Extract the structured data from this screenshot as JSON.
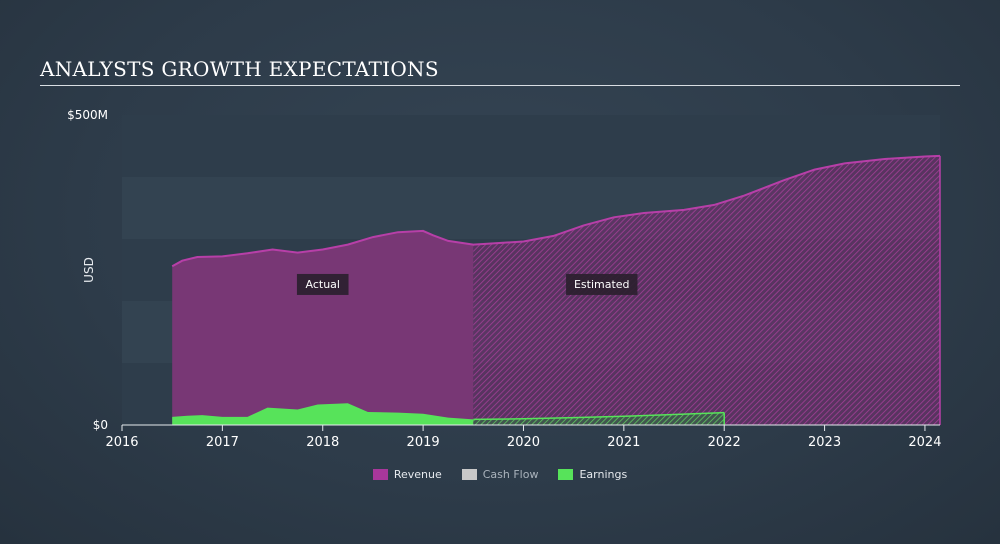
{
  "header": {
    "title": "ANALYSTS GROWTH EXPECTATIONS"
  },
  "legend": [
    {
      "label": "Revenue",
      "color": "#a8379b",
      "muted": false
    },
    {
      "label": "Cash Flow",
      "color": "#c8c8c8",
      "muted": true
    },
    {
      "label": "Earnings",
      "color": "#57e35a",
      "muted": false
    }
  ],
  "chart_data": {
    "type": "area",
    "ylabel": "USD",
    "ylim": [
      0,
      500
    ],
    "y_tick_labels": [
      {
        "value": 500,
        "label": "$500M"
      },
      {
        "value": 0,
        "label": "$0"
      }
    ],
    "xlim": [
      2016,
      2024.15
    ],
    "x_ticks": [
      2016,
      2017,
      2018,
      2019,
      2020,
      2021,
      2022,
      2023,
      2024
    ],
    "split_x": 2019.5,
    "annotations": [
      {
        "text": "Actual",
        "x": 2018.0
      },
      {
        "text": "Estimated",
        "x": 2020.78
      }
    ],
    "series": [
      {
        "name": "Revenue",
        "color": "#a8379b",
        "points": [
          [
            2016.5,
            256
          ],
          [
            2016.6,
            265
          ],
          [
            2016.75,
            271
          ],
          [
            2017.0,
            272
          ],
          [
            2017.25,
            277
          ],
          [
            2017.5,
            283
          ],
          [
            2017.75,
            278
          ],
          [
            2018.0,
            283
          ],
          [
            2018.25,
            291
          ],
          [
            2018.5,
            303
          ],
          [
            2018.75,
            311
          ],
          [
            2019.0,
            313
          ],
          [
            2019.1,
            306
          ],
          [
            2019.25,
            297
          ],
          [
            2019.5,
            291
          ],
          [
            2020.0,
            296
          ],
          [
            2020.3,
            305
          ],
          [
            2020.6,
            322
          ],
          [
            2020.9,
            335
          ],
          [
            2021.2,
            342
          ],
          [
            2021.6,
            347
          ],
          [
            2021.9,
            355
          ],
          [
            2022.2,
            370
          ],
          [
            2022.6,
            395
          ],
          [
            2022.9,
            412
          ],
          [
            2023.2,
            422
          ],
          [
            2023.6,
            429
          ],
          [
            2024.0,
            433
          ],
          [
            2024.15,
            434
          ]
        ]
      },
      {
        "name": "Earnings",
        "color": "#57e35a",
        "points": [
          [
            2016.5,
            13
          ],
          [
            2016.65,
            15
          ],
          [
            2016.8,
            16
          ],
          [
            2017.0,
            13
          ],
          [
            2017.25,
            13
          ],
          [
            2017.45,
            28
          ],
          [
            2017.75,
            25
          ],
          [
            2017.95,
            33
          ],
          [
            2018.25,
            35
          ],
          [
            2018.45,
            21
          ],
          [
            2018.75,
            20
          ],
          [
            2019.0,
            18
          ],
          [
            2019.25,
            12
          ],
          [
            2019.5,
            9
          ],
          [
            2020.0,
            10
          ],
          [
            2020.5,
            12
          ],
          [
            2021.0,
            14
          ],
          [
            2021.5,
            17
          ],
          [
            2022.0,
            20
          ]
        ]
      }
    ]
  }
}
